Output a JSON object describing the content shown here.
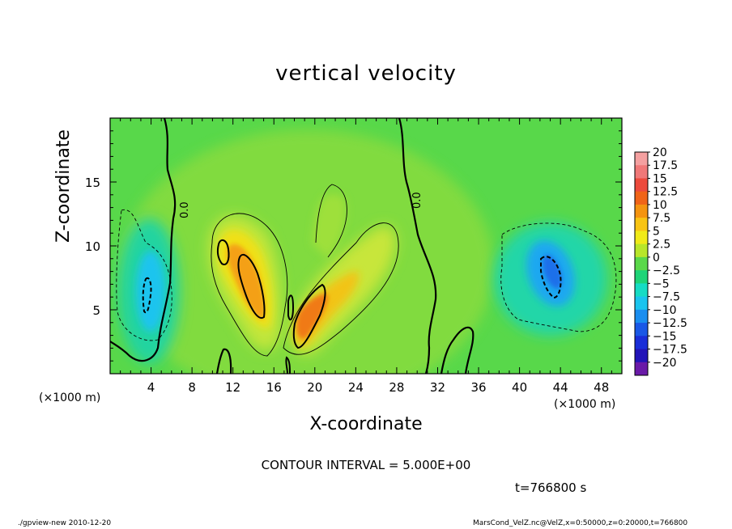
{
  "chart_data": {
    "type": "heatmap",
    "title": "vertical velocity",
    "xlabel": "X-coordinate",
    "ylabel": "Z-coordinate",
    "x_unit_label": "(×1000 m)",
    "x_ticks": [
      4,
      8,
      12,
      16,
      20,
      24,
      28,
      32,
      36,
      40,
      44,
      48
    ],
    "y_ticks": [
      5,
      10,
      15
    ],
    "xlim": [
      0,
      50
    ],
    "ylim": [
      0,
      20
    ],
    "colorbar": {
      "labels": [
        "20",
        "17.5",
        "15",
        "12.5",
        "10",
        "7.5",
        "5",
        "2.5",
        "0",
        "−2.5",
        "−5",
        "−7.5",
        "−10",
        "−12.5",
        "−15",
        "−17.5",
        "−20"
      ],
      "colors": [
        "#f4a0a0",
        "#f07878",
        "#ec4a3c",
        "#f06418",
        "#f49410",
        "#f8c414",
        "#f0ea18",
        "#b8e62a",
        "#5ad84a",
        "#1ed478",
        "#16dcc4",
        "#1ac4ee",
        "#1a8ef0",
        "#1a58e6",
        "#1a2ed8",
        "#2214b8",
        "#6a1aa8"
      ]
    },
    "contour_interval": "CONTOUR INTERVAL = 5.000E+00",
    "zero_contour_label": "0.0",
    "time_label": "t=766800 s"
  },
  "footer": {
    "left": "./gpview-new  2010-12-20",
    "right": "MarsCond_VelZ.nc@VelZ,x=0:50000,z=0:20000,t=766800"
  }
}
